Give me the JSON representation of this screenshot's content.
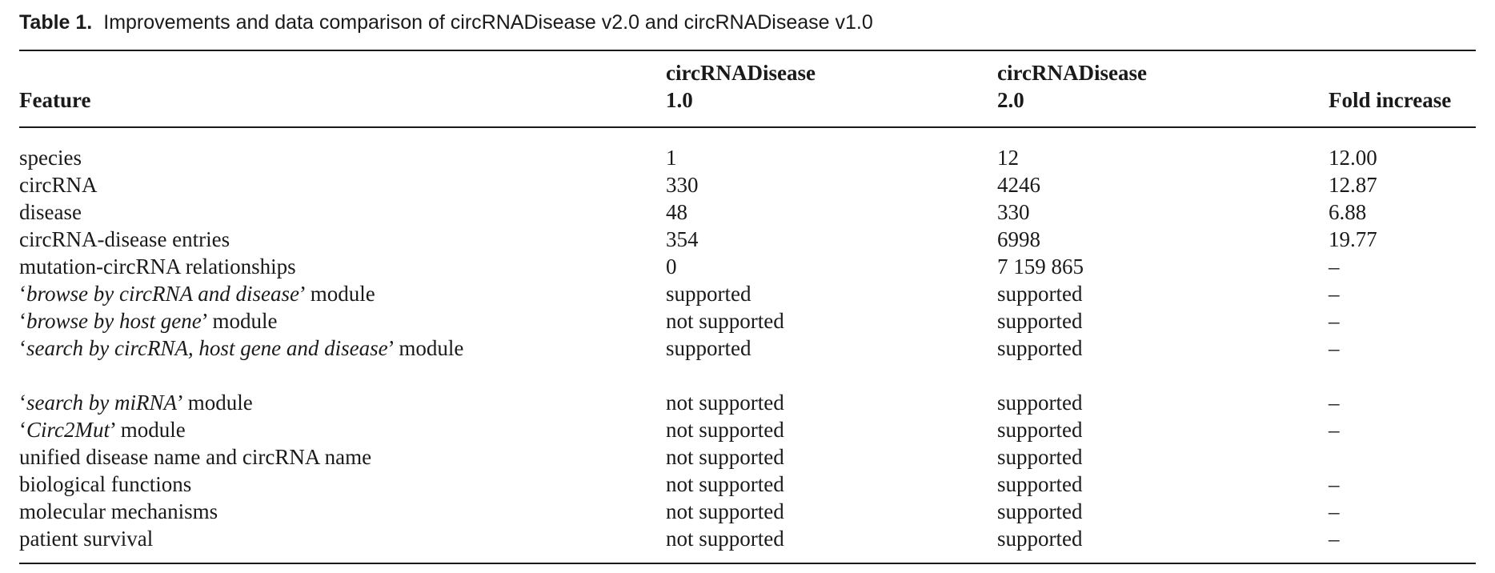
{
  "caption": {
    "label": "Table 1.",
    "text": "Improvements and data comparison of circRNADisease v2.0 and circRNADisease v1.0"
  },
  "table": {
    "headers": {
      "feature": "Feature",
      "v1_line1": "circRNADisease",
      "v1_line2": "1.0",
      "v2_line1": "circRNADisease",
      "v2_line2": "2.0",
      "fold": "Fold increase"
    },
    "rows": [
      {
        "pre": "",
        "it": "",
        "post": "species",
        "v1": "1",
        "v2": "12",
        "fold": "12.00"
      },
      {
        "pre": "",
        "it": "",
        "post": "circRNA",
        "v1": "330",
        "v2": "4246",
        "fold": "12.87"
      },
      {
        "pre": "",
        "it": "",
        "post": "disease",
        "v1": "48",
        "v2": "330",
        "fold": "6.88"
      },
      {
        "pre": "",
        "it": "",
        "post": "circRNA-disease entries",
        "v1": "354",
        "v2": "6998",
        "fold": "19.77"
      },
      {
        "pre": "",
        "it": "",
        "post": "mutation-circRNA relationships",
        "v1": "0",
        "v2": "7 159 865",
        "fold": "–"
      },
      {
        "pre": "‘",
        "it": "browse by circRNA and disease",
        "post": "’ module",
        "v1": "supported",
        "v2": "supported",
        "fold": "–"
      },
      {
        "pre": "‘",
        "it": "browse by host gene",
        "post": "’ module",
        "v1": "not supported",
        "v2": "supported",
        "fold": "–"
      },
      {
        "pre": "‘",
        "it": "search by circRNA, host gene and disease",
        "post": "’ module",
        "v1": "supported",
        "v2": "supported",
        "fold": "–"
      },
      {
        "pre": "‘",
        "it": "search by miRNA",
        "post": "’ module",
        "v1": "not supported",
        "v2": "supported",
        "fold": "–"
      },
      {
        "pre": "‘",
        "it": "Circ2Mut",
        "post": "’ module",
        "v1": "not supported",
        "v2": "supported",
        "fold": "–"
      },
      {
        "pre": "",
        "it": "",
        "post": "unified disease name and circRNA name",
        "v1": "not supported",
        "v2": "supported",
        "fold": ""
      },
      {
        "pre": "",
        "it": "",
        "post": "biological functions",
        "v1": "not supported",
        "v2": "supported",
        "fold": "–"
      },
      {
        "pre": "",
        "it": "",
        "post": "molecular mechanisms",
        "v1": "not supported",
        "v2": "supported",
        "fold": "–"
      },
      {
        "pre": "",
        "it": "",
        "post": "patient survival",
        "v1": "not supported",
        "v2": "supported",
        "fold": "–"
      }
    ]
  }
}
